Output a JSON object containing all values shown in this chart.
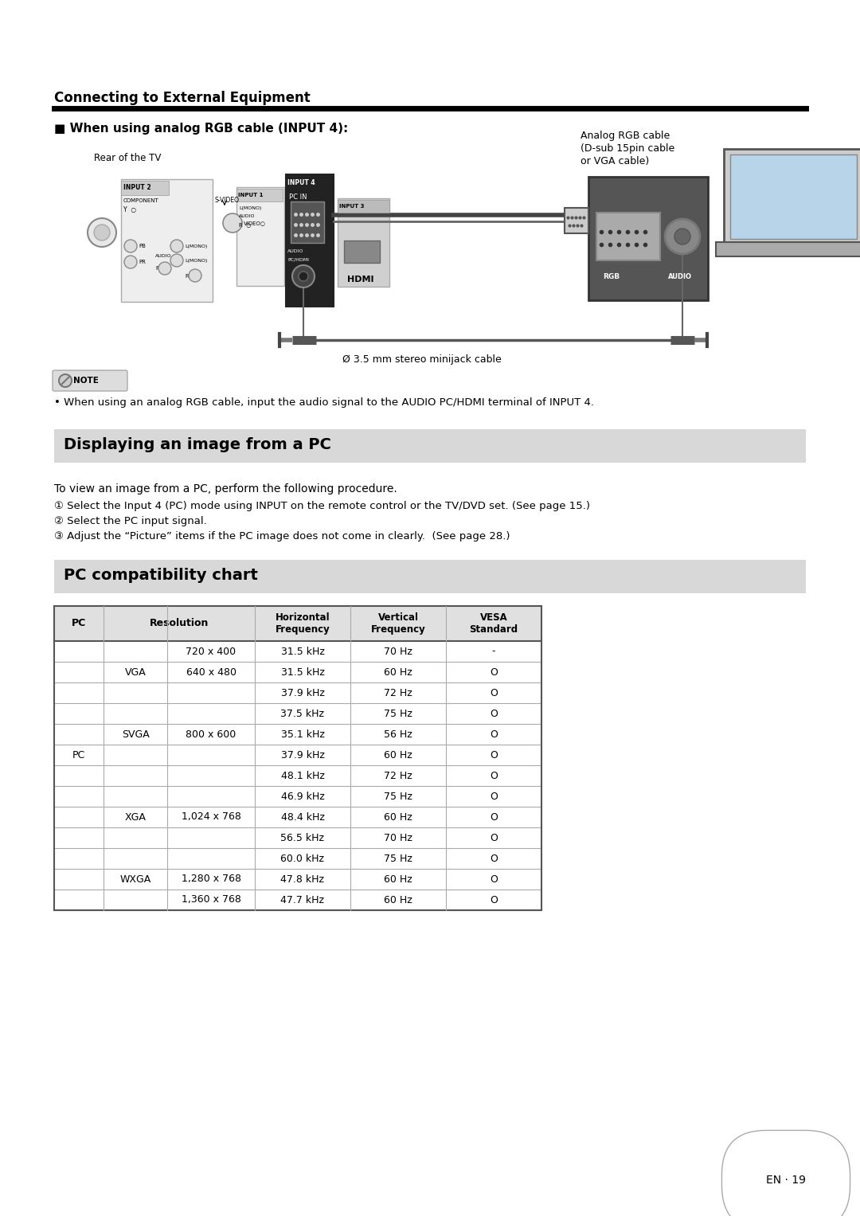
{
  "page_background": "#ffffff",
  "section1_title": "Connecting to External Equipment",
  "subsection1_title": "■ When using analog RGB cable (INPUT 4):",
  "diagram_note": "When using an analog RGB cable, input the audio signal to the AUDIO PC/HDMI terminal of INPUT 4.",
  "section2_title": "Displaying an image from a PC",
  "section2_bg": "#d8d8d8",
  "section2_text_intro": "To view an image from a PC, perform the following procedure.",
  "section2_step1": "① Select the Input 4 (PC) mode using INPUT on the remote control or the TV/DVD set. (See page 15.)",
  "section2_step2": "② Select the PC input signal.",
  "section2_step3": "③ Adjust the “Picture” items if the PC image does not come in clearly.  (See page 28.)",
  "section3_title": "PC compatibility chart",
  "section3_bg": "#d8d8d8",
  "page_num_text": "EN · 19",
  "table_rows": [
    {
      "pc": "",
      "type": "",
      "res": "720 x 400",
      "hf": "31.5 kHz",
      "vf": "70 Hz",
      "vesa": "-"
    },
    {
      "pc": "",
      "type": "VGA",
      "res": "640 x 480",
      "hf": "31.5 kHz",
      "vf": "60 Hz",
      "vesa": "O"
    },
    {
      "pc": "",
      "type": "",
      "res": "",
      "hf": "37.9 kHz",
      "vf": "72 Hz",
      "vesa": "O"
    },
    {
      "pc": "",
      "type": "",
      "res": "",
      "hf": "37.5 kHz",
      "vf": "75 Hz",
      "vesa": "O"
    },
    {
      "pc": "",
      "type": "SVGA",
      "res": "800 x 600",
      "hf": "35.1 kHz",
      "vf": "56 Hz",
      "vesa": "O"
    },
    {
      "pc": "PC",
      "type": "",
      "res": "",
      "hf": "37.9 kHz",
      "vf": "60 Hz",
      "vesa": "O"
    },
    {
      "pc": "",
      "type": "",
      "res": "",
      "hf": "48.1 kHz",
      "vf": "72 Hz",
      "vesa": "O"
    },
    {
      "pc": "",
      "type": "",
      "res": "",
      "hf": "46.9 kHz",
      "vf": "75 Hz",
      "vesa": "O"
    },
    {
      "pc": "",
      "type": "XGA",
      "res": "1,024 x 768",
      "hf": "48.4 kHz",
      "vf": "60 Hz",
      "vesa": "O"
    },
    {
      "pc": "",
      "type": "",
      "res": "",
      "hf": "56.5 kHz",
      "vf": "70 Hz",
      "vesa": "O"
    },
    {
      "pc": "",
      "type": "",
      "res": "",
      "hf": "60.0 kHz",
      "vf": "75 Hz",
      "vesa": "O"
    },
    {
      "pc": "",
      "type": "WXGA",
      "res": "1,280 x 768",
      "hf": "47.8 kHz",
      "vf": "60 Hz",
      "vesa": "O"
    },
    {
      "pc": "",
      "type": "",
      "res": "1,360 x 768",
      "hf": "47.7 kHz",
      "vf": "60 Hz",
      "vesa": "O"
    }
  ]
}
